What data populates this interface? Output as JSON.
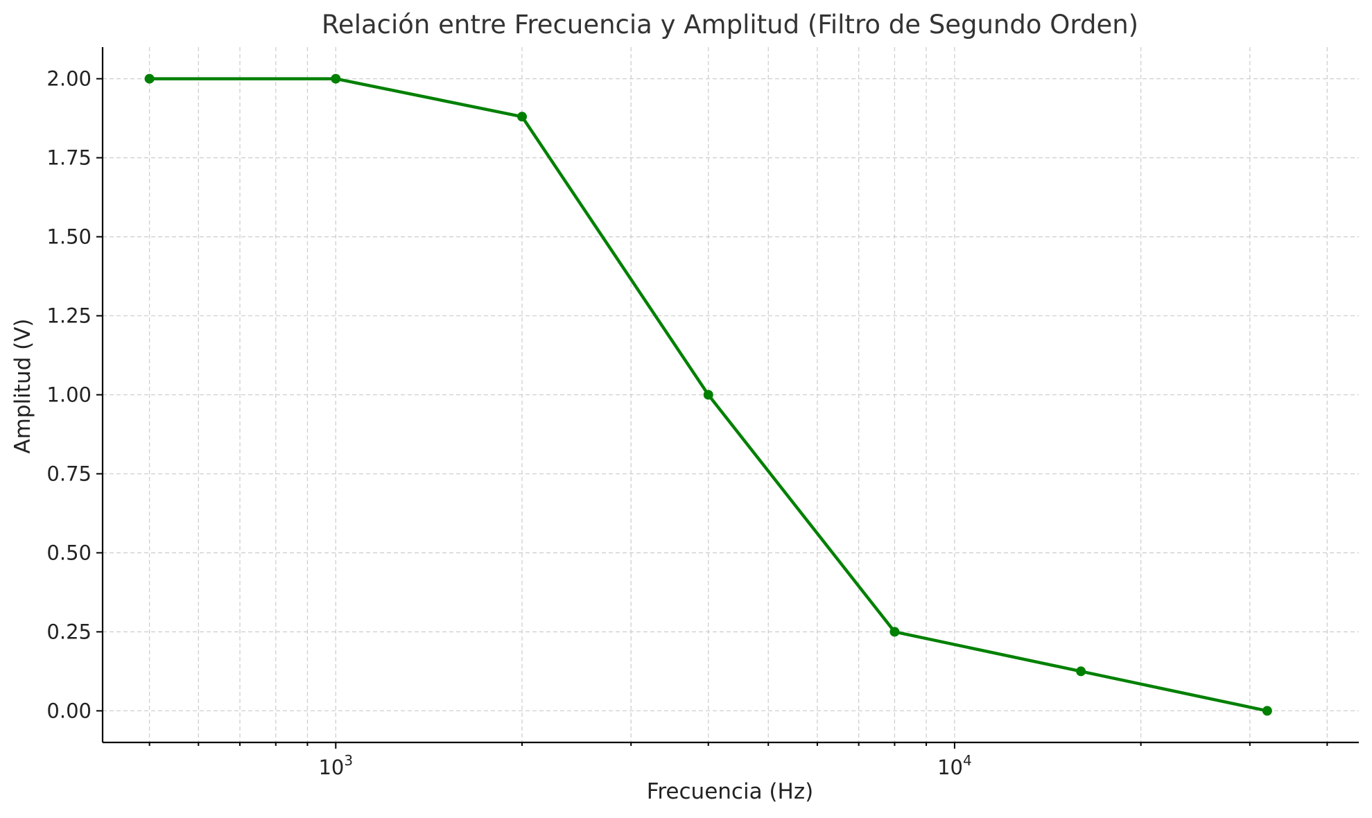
{
  "chart_data": {
    "type": "line",
    "title": "Relación entre Frecuencia y Amplitud (Filtro de Segundo Orden)",
    "xlabel": "Frecuencia (Hz)",
    "ylabel": "Amplitud (V)",
    "x_scale": "log",
    "xlim": [
      420,
      45000
    ],
    "ylim": [
      -0.1,
      2.1
    ],
    "x_ticks": [
      {
        "value": 1000,
        "base": "10",
        "exp": "3"
      },
      {
        "value": 10000,
        "base": "10",
        "exp": "4"
      }
    ],
    "y_ticks": [
      {
        "value": 0.0,
        "label": "0.00"
      },
      {
        "value": 0.25,
        "label": "0.25"
      },
      {
        "value": 0.5,
        "label": "0.50"
      },
      {
        "value": 0.75,
        "label": "0.75"
      },
      {
        "value": 1.0,
        "label": "1.00"
      },
      {
        "value": 1.25,
        "label": "1.25"
      },
      {
        "value": 1.5,
        "label": "1.50"
      },
      {
        "value": 1.75,
        "label": "1.75"
      },
      {
        "value": 2.0,
        "label": "2.00"
      }
    ],
    "grid": true,
    "series": [
      {
        "color": "#008000",
        "x": [
          500,
          1000,
          2000,
          4000,
          8000,
          16000,
          32000
        ],
        "y": [
          2.0,
          2.0,
          1.88,
          1.0,
          0.25,
          0.125,
          0.0
        ]
      }
    ]
  }
}
